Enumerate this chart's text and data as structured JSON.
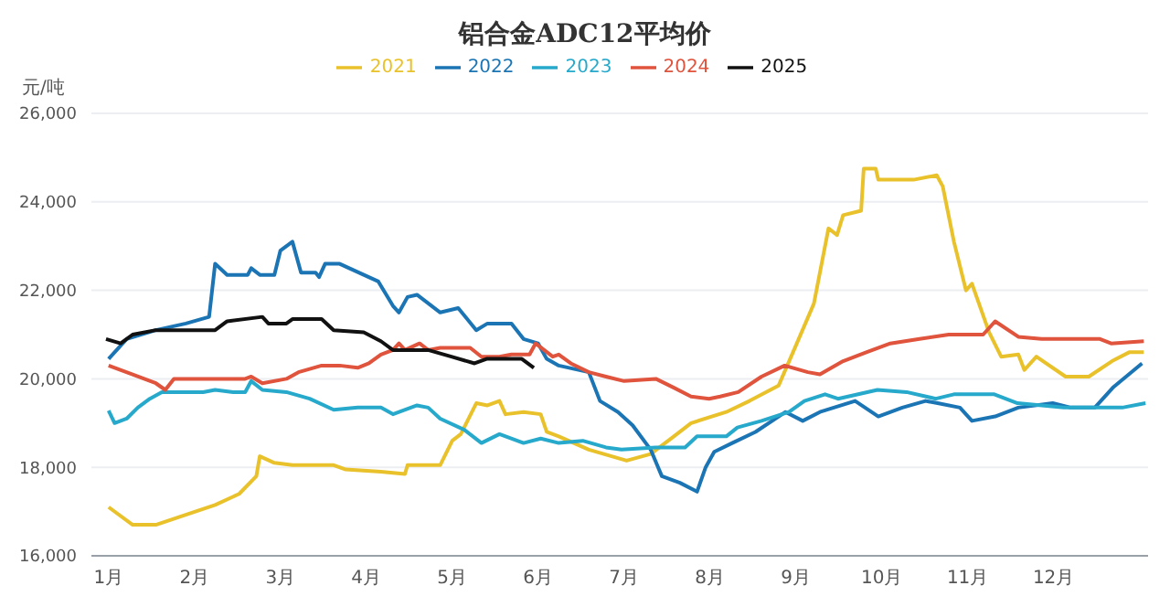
{
  "chart_data": {
    "type": "line",
    "title": "铝合金ADC12平均价",
    "ylabel": "元/吨",
    "legend": "top",
    "grid": "y",
    "marker": "none",
    "line_style": "solid",
    "xlim": [
      0.8,
      13.1
    ],
    "xticks": [
      {
        "value": 1,
        "label": "1月"
      },
      {
        "value": 2,
        "label": "2月"
      },
      {
        "value": 3,
        "label": "3月"
      },
      {
        "value": 4,
        "label": "4月"
      },
      {
        "value": 5,
        "label": "5月"
      },
      {
        "value": 6,
        "label": "6月"
      },
      {
        "value": 7,
        "label": "7月"
      },
      {
        "value": 8,
        "label": "8月"
      },
      {
        "value": 9,
        "label": "9月"
      },
      {
        "value": 10,
        "label": "10月"
      },
      {
        "value": 11,
        "label": "11月"
      },
      {
        "value": 12,
        "label": "12月"
      }
    ],
    "ylim": [
      16000,
      26000
    ],
    "yticks": [
      {
        "value": 16000,
        "label": "16,000"
      },
      {
        "value": 18000,
        "label": "18,000"
      },
      {
        "value": 20000,
        "label": "20,000"
      },
      {
        "value": 22000,
        "label": "22,000"
      },
      {
        "value": 24000,
        "label": "24,000"
      },
      {
        "value": 26000,
        "label": "26,000"
      }
    ],
    "series": [
      {
        "name": "2021",
        "color": "#e9c22b",
        "x": [
          1.0,
          1.28,
          1.55,
          1.93,
          2.24,
          2.52,
          2.72,
          2.76,
          2.93,
          3.14,
          3.62,
          3.76,
          4.17,
          4.45,
          4.48,
          4.86,
          5.0,
          5.1,
          5.28,
          5.41,
          5.55,
          5.62,
          5.83,
          6.03,
          6.1,
          6.24,
          6.59,
          7.03,
          7.31,
          7.58,
          7.78,
          8.19,
          8.46,
          8.8,
          9.0,
          9.21,
          9.38,
          9.48,
          9.55,
          9.76,
          9.79,
          9.93,
          9.96,
          10.37,
          10.64,
          10.71,
          10.84,
          10.98,
          11.05,
          11.25,
          11.39,
          11.59,
          11.66,
          11.8,
          12.14,
          12.41,
          12.68,
          12.88,
          13.05
        ],
        "values": [
          17100,
          16700,
          16700,
          16950,
          17150,
          17400,
          17800,
          18250,
          18100,
          18050,
          18050,
          17950,
          17900,
          17850,
          18050,
          18050,
          18600,
          18750,
          19450,
          19400,
          19500,
          19200,
          19250,
          19200,
          18800,
          18700,
          18400,
          18150,
          18300,
          18700,
          19000,
          19250,
          19500,
          19850,
          20750,
          21700,
          23400,
          23250,
          23700,
          23800,
          24750,
          24750,
          24500,
          24500,
          24600,
          24350,
          23100,
          22000,
          22150,
          21050,
          20500,
          20550,
          20200,
          20500,
          20050,
          20050,
          20400,
          20600,
          20600
        ]
      },
      {
        "name": "2022",
        "color": "#1b75b5",
        "x": [
          1.0,
          1.21,
          1.55,
          1.9,
          2.17,
          2.24,
          2.38,
          2.62,
          2.66,
          2.76,
          2.93,
          3.0,
          3.14,
          3.24,
          3.41,
          3.45,
          3.52,
          3.69,
          3.97,
          4.14,
          4.31,
          4.38,
          4.48,
          4.59,
          4.86,
          5.07,
          5.28,
          5.41,
          5.69,
          5.83,
          6.0,
          6.1,
          6.24,
          6.59,
          6.72,
          6.93,
          7.1,
          7.31,
          7.44,
          7.65,
          7.85,
          7.95,
          8.05,
          8.26,
          8.53,
          8.88,
          9.08,
          9.28,
          9.69,
          9.96,
          10.24,
          10.51,
          10.65,
          10.91,
          11.05,
          11.32,
          11.59,
          11.99,
          12.2,
          12.48,
          12.69,
          13.03
        ],
        "values": [
          20450,
          20900,
          21100,
          21250,
          21400,
          22600,
          22350,
          22350,
          22500,
          22350,
          22350,
          22900,
          23100,
          22400,
          22400,
          22300,
          22600,
          22600,
          22350,
          22200,
          21650,
          21500,
          21850,
          21900,
          21500,
          21600,
          21100,
          21250,
          21250,
          20900,
          20800,
          20450,
          20300,
          20150,
          19500,
          19250,
          18950,
          18400,
          17800,
          17650,
          17450,
          18000,
          18350,
          18550,
          18800,
          19250,
          19050,
          19250,
          19500,
          19150,
          19350,
          19500,
          19450,
          19350,
          19050,
          19150,
          19350,
          19450,
          19350,
          19350,
          19800,
          20350
        ]
      },
      {
        "name": "2023",
        "color": "#27a9cc",
        "x": [
          1.0,
          1.07,
          1.21,
          1.34,
          1.48,
          1.62,
          2.1,
          2.24,
          2.45,
          2.59,
          2.66,
          2.79,
          3.07,
          3.34,
          3.62,
          3.9,
          4.17,
          4.31,
          4.59,
          4.72,
          4.86,
          5.14,
          5.34,
          5.55,
          5.83,
          6.03,
          6.24,
          6.52,
          6.79,
          6.97,
          7.37,
          7.71,
          7.85,
          8.19,
          8.32,
          8.6,
          8.92,
          9.1,
          9.34,
          9.49,
          9.95,
          10.29,
          10.63,
          10.84,
          11.04,
          11.31,
          11.58,
          12.12,
          12.53,
          12.8,
          13.07
        ],
        "values": [
          19280,
          19000,
          19100,
          19350,
          19550,
          19700,
          19700,
          19750,
          19700,
          19700,
          19950,
          19750,
          19700,
          19550,
          19300,
          19350,
          19350,
          19200,
          19400,
          19350,
          19100,
          18850,
          18550,
          18750,
          18550,
          18650,
          18550,
          18600,
          18450,
          18400,
          18450,
          18450,
          18700,
          18700,
          18900,
          19050,
          19250,
          19500,
          19650,
          19550,
          19750,
          19700,
          19550,
          19650,
          19650,
          19650,
          19450,
          19350,
          19350,
          19350,
          19450
        ]
      },
      {
        "name": "2024",
        "color": "#e0533c",
        "x": [
          1.0,
          1.28,
          1.55,
          1.66,
          1.76,
          2.24,
          2.59,
          2.66,
          2.79,
          3.07,
          3.21,
          3.48,
          3.69,
          3.9,
          4.03,
          4.17,
          4.31,
          4.38,
          4.45,
          4.62,
          4.72,
          4.86,
          5.21,
          5.34,
          5.55,
          5.69,
          5.9,
          5.97,
          6.17,
          6.24,
          6.38,
          6.59,
          6.79,
          7.0,
          7.37,
          7.58,
          7.78,
          7.99,
          8.12,
          8.33,
          8.6,
          8.87,
          9.14,
          9.28,
          9.55,
          9.82,
          10.1,
          10.44,
          10.78,
          11.18,
          11.32,
          11.59,
          11.86,
          12.54,
          12.67,
          13.05
        ],
        "values": [
          20300,
          20100,
          19900,
          19750,
          20000,
          20000,
          20000,
          20050,
          19900,
          20000,
          20150,
          20300,
          20300,
          20250,
          20350,
          20550,
          20650,
          20800,
          20650,
          20800,
          20650,
          20700,
          20700,
          20500,
          20500,
          20550,
          20550,
          20800,
          20500,
          20550,
          20350,
          20150,
          20050,
          19950,
          20000,
          19800,
          19600,
          19550,
          19600,
          19700,
          20050,
          20300,
          20150,
          20100,
          20400,
          20600,
          20800,
          20900,
          21000,
          21000,
          21300,
          20950,
          20900,
          20900,
          20800,
          20850
        ]
      },
      {
        "name": "2025",
        "color": "#111111",
        "x": [
          0.97,
          1.14,
          1.28,
          1.55,
          2.24,
          2.38,
          2.79,
          2.86,
          3.07,
          3.14,
          3.48,
          3.62,
          3.97,
          4.17,
          4.31,
          4.72,
          4.99,
          5.26,
          5.4,
          5.81,
          5.95
        ],
        "values": [
          20900,
          20800,
          21000,
          21100,
          21100,
          21300,
          21400,
          21250,
          21250,
          21350,
          21350,
          21100,
          21050,
          20850,
          20650,
          20650,
          20500,
          20350,
          20450,
          20450,
          20250
        ]
      }
    ]
  }
}
